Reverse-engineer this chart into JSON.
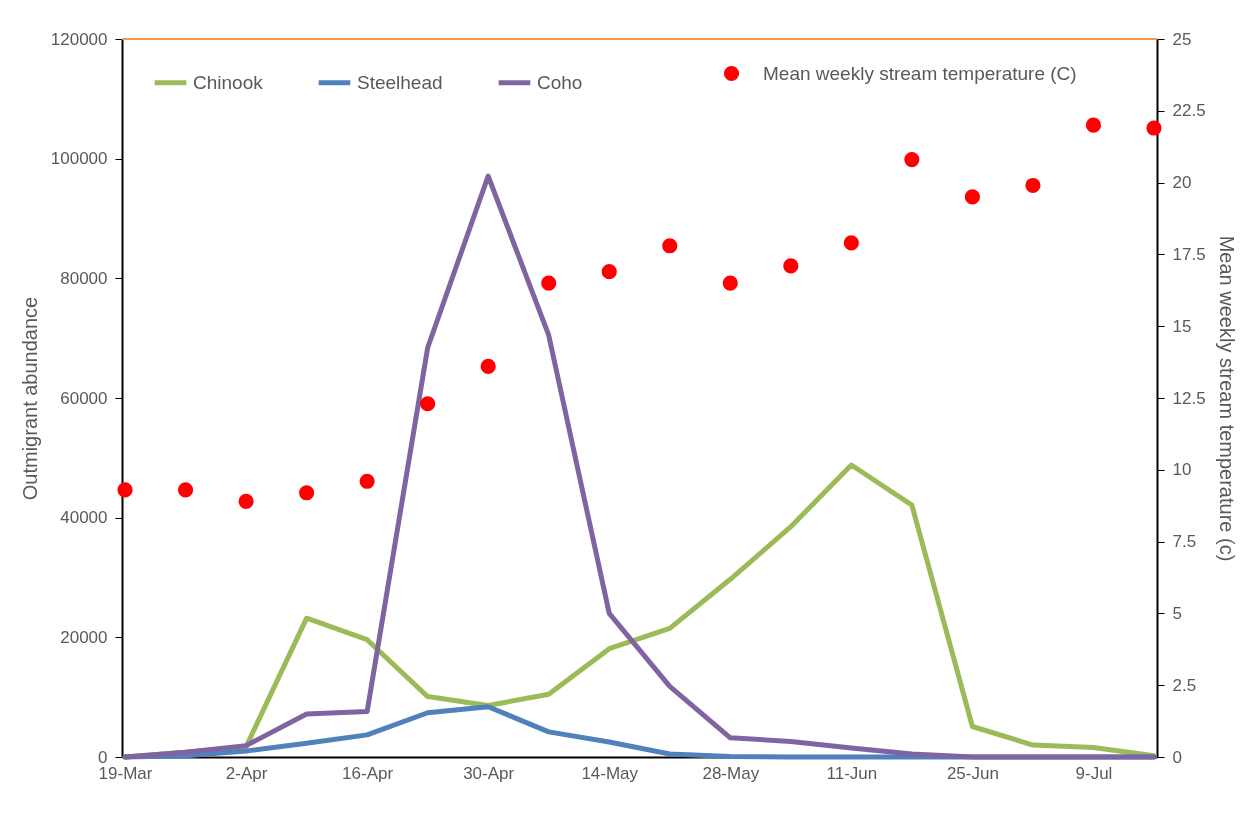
{
  "chart_data": {
    "type": "line",
    "xlabel": null,
    "ylabel": "Outmigrant abundance",
    "y2label": "Mean weekly stream temperature (c)",
    "categories": [
      "19-Mar",
      null,
      "2-Apr",
      null,
      "16-Apr",
      null,
      "30-Apr",
      null,
      "14-May",
      null,
      "28-May",
      null,
      "11-Jun",
      null,
      "25-Jun",
      null,
      "9-Jul",
      null
    ],
    "series": [
      {
        "name": "Chinook",
        "color": "#9bbb59",
        "values": [
          0,
          800,
          1700,
          23200,
          19600,
          10100,
          8600,
          10500,
          18100,
          21500,
          29700,
          38500,
          48800,
          42100,
          5100,
          2000,
          1600,
          200
        ]
      },
      {
        "name": "Steelhead",
        "color": "#4f81bd",
        "values": [
          0,
          200,
          1000,
          2300,
          3700,
          7400,
          8400,
          4200,
          2500,
          500,
          100,
          0,
          0,
          0,
          0,
          0,
          0,
          0
        ]
      },
      {
        "name": "Coho",
        "color": "#8064a2",
        "values": [
          0,
          800,
          1900,
          7200,
          7600,
          68400,
          97100,
          70500,
          24000,
          11800,
          3200,
          2600,
          1500,
          500,
          0,
          0,
          0,
          0
        ]
      },
      {
        "name": "Mean weekly stream temperature (C)",
        "type": "scatter",
        "axis": "y2",
        "color": "#ff0000",
        "values": [
          9.3,
          9.3,
          8.9,
          9.2,
          9.6,
          12.3,
          13.6,
          16.5,
          16.9,
          17.8,
          16.5,
          17.1,
          17.9,
          20.8,
          19.5,
          19.9,
          22.0,
          21.9
        ]
      }
    ],
    "ylim": [
      0,
      120000
    ],
    "yticks": [
      0,
      20000,
      40000,
      60000,
      80000,
      100000,
      120000
    ],
    "y2lim": [
      0,
      25
    ],
    "y2ticks": [
      0,
      2.5,
      5,
      7.5,
      10,
      12.5,
      15,
      17.5,
      20,
      22.5,
      25
    ],
    "ref_lines": [
      {
        "axis": "y",
        "value": 120000,
        "color": "#f79646"
      }
    ],
    "grid": false,
    "legend": "top"
  }
}
